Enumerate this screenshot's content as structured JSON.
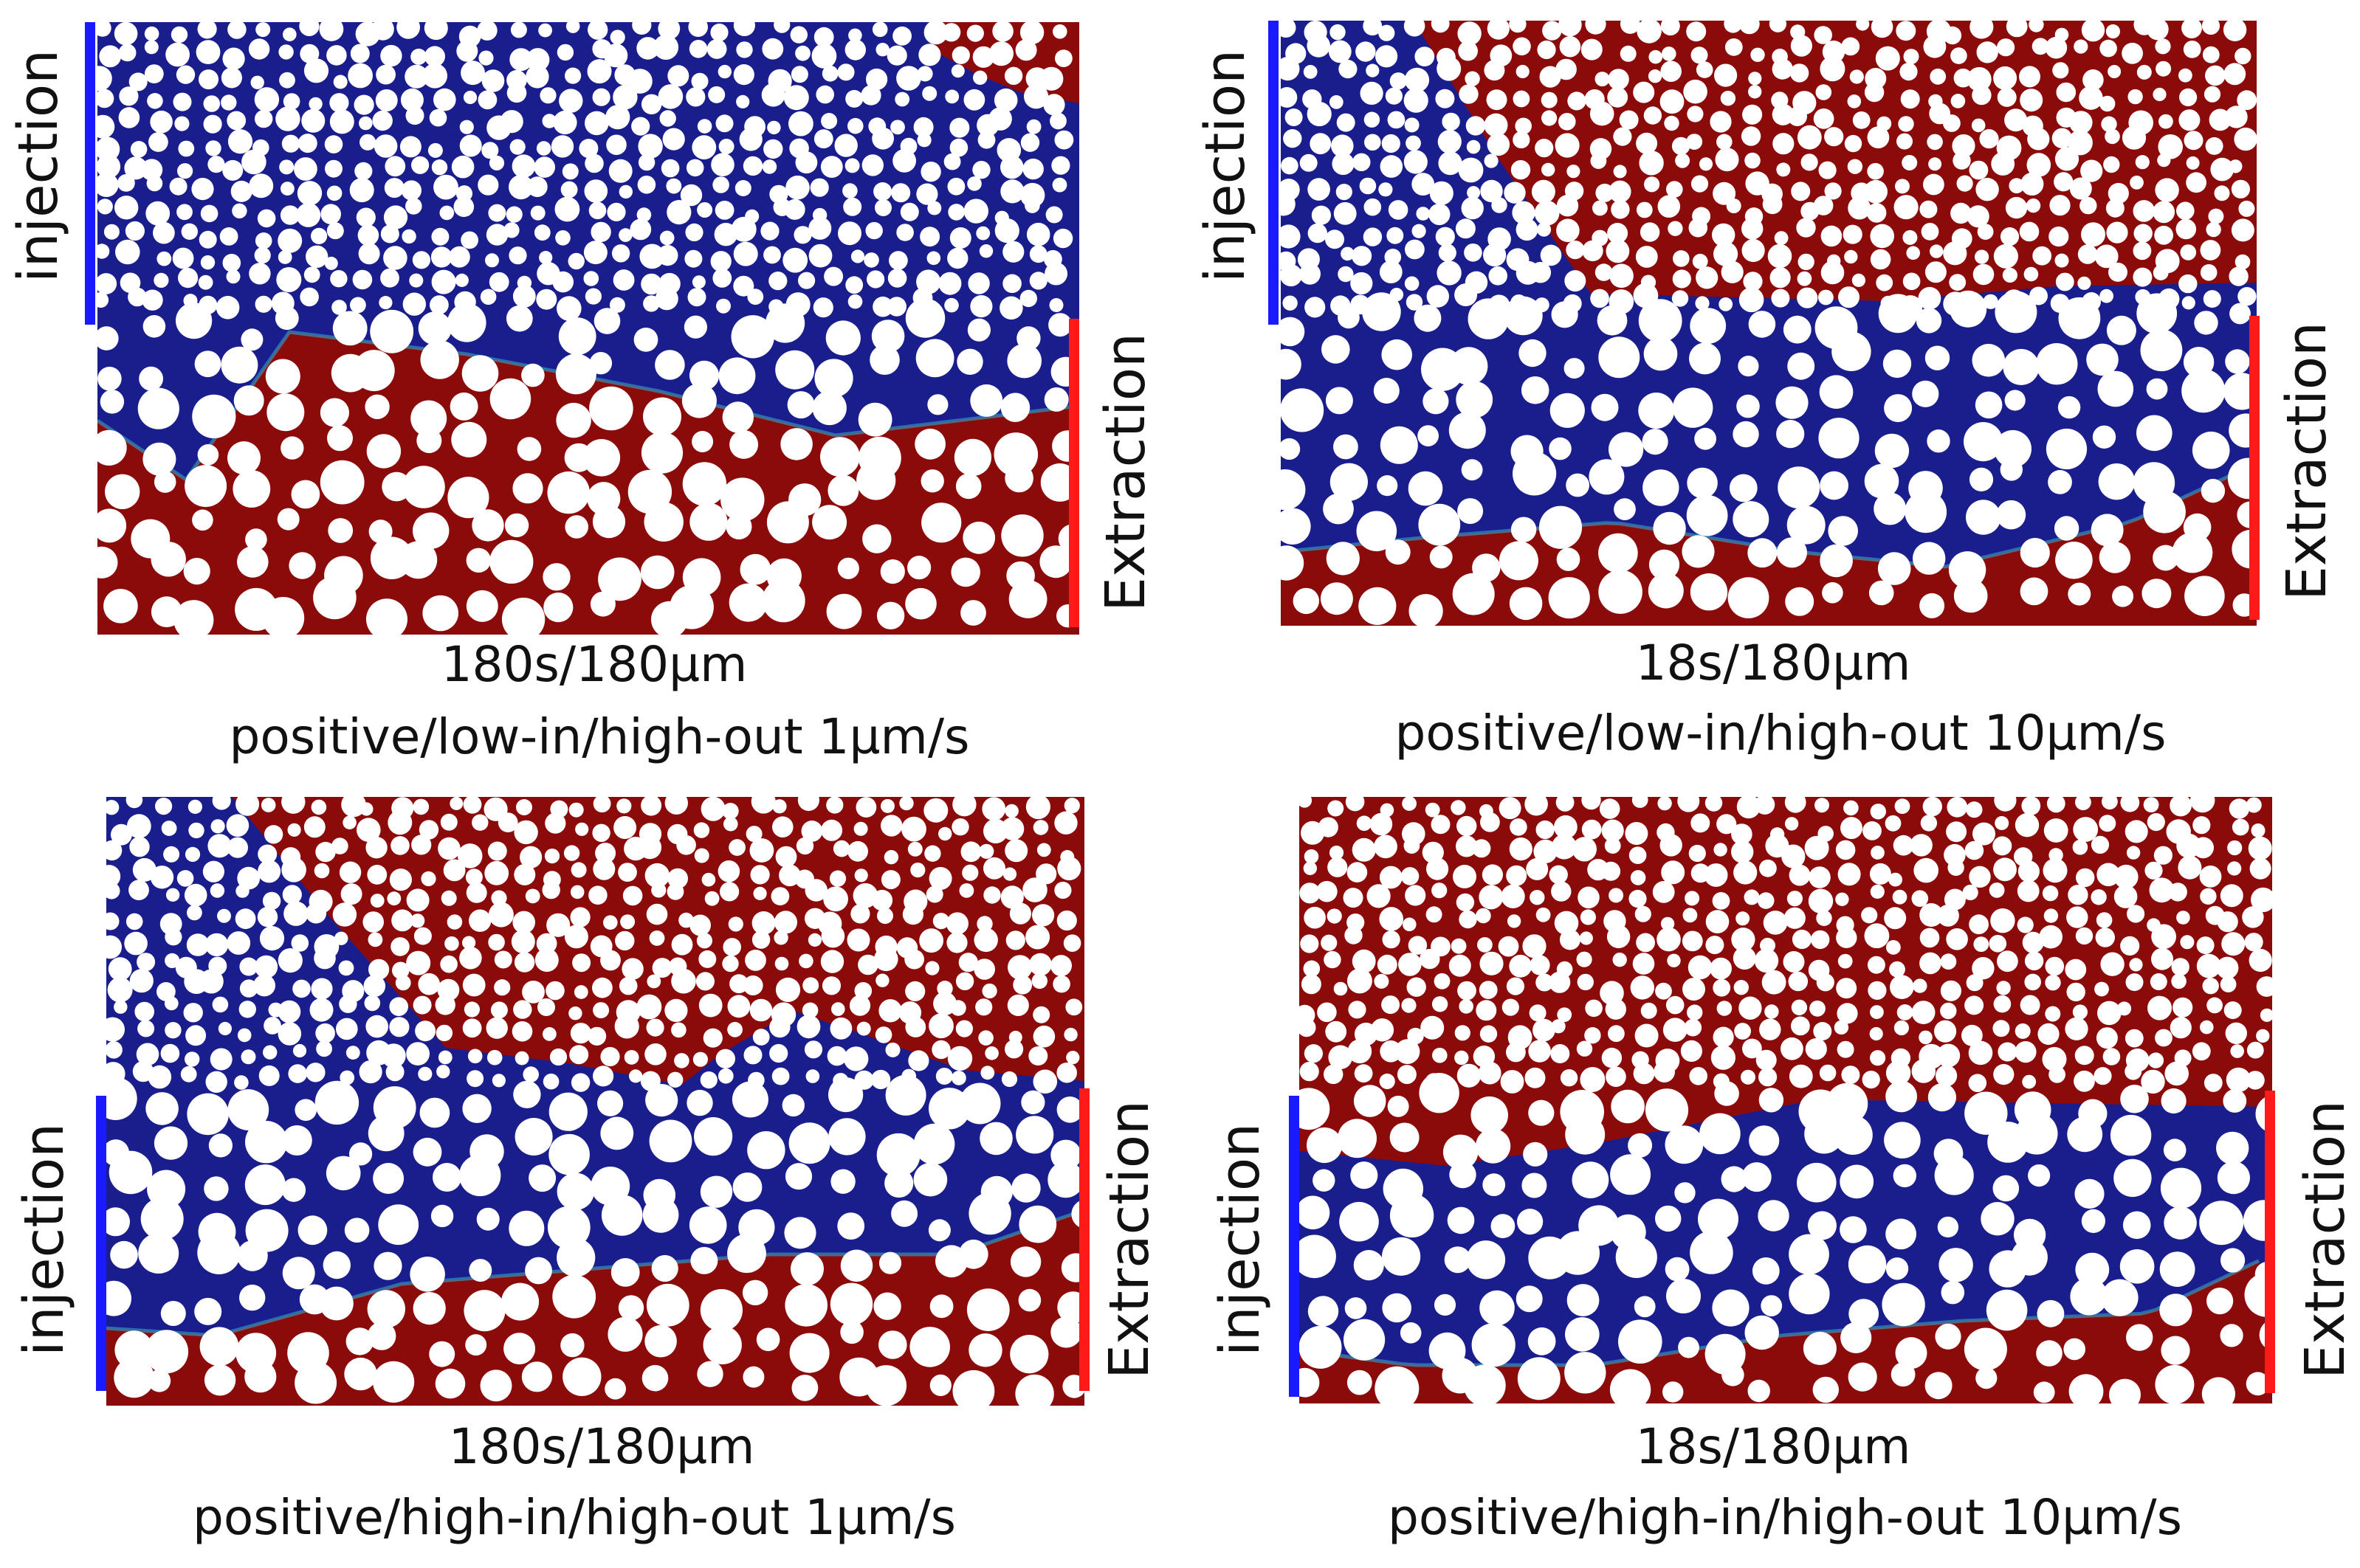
{
  "colors": {
    "displacing_fluid": "#8b0a0a",
    "resident_fluid": "#1a1e8c",
    "grain": "#ffffff",
    "injection_bar": "#1a1aff",
    "extraction_bar": "#ff1a1a"
  },
  "panels": [
    {
      "time_label": "180s/180µm",
      "case_label": "positive/low-in/high-out 1µm/s",
      "injection_label": "injection",
      "extraction_label": "Extraction"
    },
    {
      "time_label": "18s/180µm",
      "case_label": "positive/low-in/high-out 10µm/s",
      "injection_label": "injection",
      "extraction_label": "Extraction"
    },
    {
      "time_label": "180s/180µm",
      "case_label": "positive/high-in/high-out 1µm/s",
      "injection_label": "injection",
      "extraction_label": "Extraction"
    },
    {
      "time_label": "18s/180µm",
      "case_label": "positive/high-in/high-out 10µm/s",
      "injection_label": "injection",
      "extraction_label": "Extraction"
    }
  ]
}
